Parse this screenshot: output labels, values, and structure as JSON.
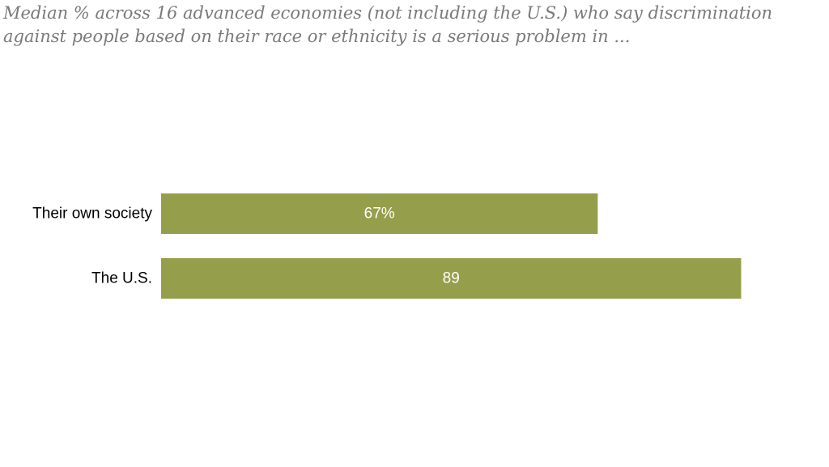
{
  "chart_data": {
    "type": "bar",
    "orientation": "horizontal",
    "title": "",
    "subtitle_lines": [
      "Median % across 16 advanced economies (not including the U.S.) who say discrimination",
      "against people based on their race or ethnicity is a serious problem in ..."
    ],
    "categories": [
      "Their own society",
      "The U.S."
    ],
    "values": [
      67,
      89
    ],
    "value_labels": [
      "67%",
      "89"
    ],
    "xlim": [
      0,
      100
    ],
    "xlabel": "",
    "ylabel": "",
    "grid": false,
    "legend": "none",
    "colors": {
      "bar": "#959e4a",
      "value_text": "#ffffff",
      "category_text": "#000000"
    }
  }
}
